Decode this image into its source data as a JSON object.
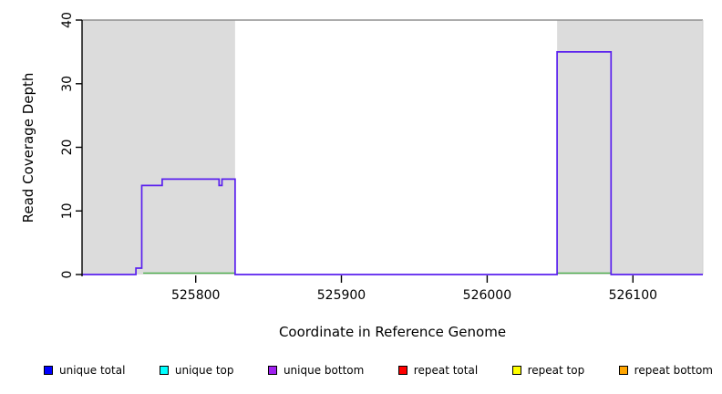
{
  "figure": {
    "background": "#ffffff"
  },
  "chart_data": {
    "type": "line",
    "title": "",
    "xlabel": "Coordinate in Reference Genome",
    "ylabel": "Read Coverage Depth",
    "x_range": [
      525722,
      526148
    ],
    "y_range": [
      0,
      40
    ],
    "x_ticks": [
      525800,
      525900,
      526000,
      526100
    ],
    "y_ticks": [
      0,
      10,
      20,
      30,
      40
    ],
    "grid": "off",
    "legend_position": "bottom",
    "shaded_regions": [
      {
        "x1": 525722,
        "x2": 525827,
        "color": "#dcdcdc"
      },
      {
        "x1": 526048,
        "x2": 526148,
        "color": "#dcdcdc"
      }
    ],
    "series": [
      {
        "name": "zero depth baseline",
        "type": "segments",
        "color": "#4cb04c",
        "y": 0,
        "segments": [
          [
            525764,
            525827
          ],
          [
            526048,
            526085
          ]
        ]
      },
      {
        "name": "unique bottom",
        "type": "step",
        "color": "#5a20ee",
        "points": [
          [
            525722,
            0
          ],
          [
            525759,
            0
          ],
          [
            525759,
            1
          ],
          [
            525763,
            1
          ],
          [
            525763,
            14
          ],
          [
            525777,
            14
          ],
          [
            525777,
            15
          ],
          [
            525816,
            15
          ],
          [
            525816,
            14
          ],
          [
            525818,
            14
          ],
          [
            525818,
            15
          ],
          [
            525827,
            15
          ],
          [
            525827,
            0
          ],
          [
            526048,
            0
          ],
          [
            526048,
            35
          ],
          [
            526085,
            35
          ],
          [
            526085,
            0
          ],
          [
            526148,
            0
          ]
        ]
      }
    ],
    "legend": [
      {
        "label": "unique total",
        "color": "#0000ff"
      },
      {
        "label": "unique top",
        "color": "#00ffff"
      },
      {
        "label": "unique bottom",
        "color": "#a020f0"
      },
      {
        "label": "repeat total",
        "color": "#ff0000"
      },
      {
        "label": "repeat top",
        "color": "#ffff00"
      },
      {
        "label": "repeat bottom",
        "color": "#ffa500"
      }
    ],
    "axis": {
      "color": "#000000",
      "box_top_color": "#909090",
      "box_right_color": "#d0d0d0"
    }
  }
}
